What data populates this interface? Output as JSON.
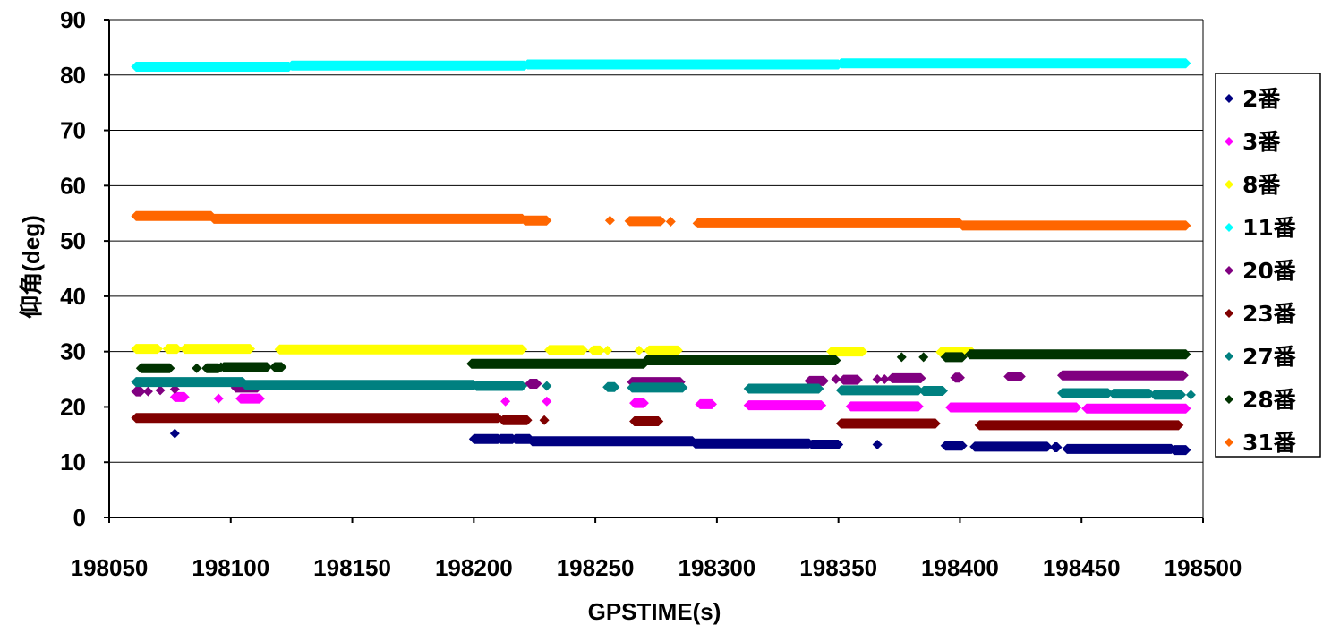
{
  "chart_data": {
    "type": "scatter",
    "title": "",
    "xlabel": "GPSTIME(s)",
    "ylabel": "仰角(deg)",
    "xlim": [
      198050,
      198500
    ],
    "ylim": [
      0,
      90
    ],
    "xticks": [
      198050,
      198100,
      198150,
      198200,
      198250,
      198300,
      198350,
      198400,
      198450,
      198500
    ],
    "yticks": [
      0,
      10,
      20,
      30,
      40,
      50,
      60,
      70,
      80,
      90
    ],
    "grid": "horizontal",
    "legend_position": "right",
    "series": [
      {
        "name": "2番",
        "color": "#000080",
        "points": [
          [
            198077,
            15.2
          ],
          [
            198366,
            13.2
          ]
        ],
        "segments": [
          [
            198200,
            198210,
            14.2
          ],
          [
            198211,
            198216,
            14.2
          ],
          [
            198217,
            198223,
            14.2
          ],
          [
            198224,
            198290,
            13.8
          ],
          [
            198291,
            198338,
            13.4
          ],
          [
            198339,
            198350,
            13.2
          ],
          [
            198394,
            198401,
            13.0
          ],
          [
            198406,
            198436,
            12.8
          ],
          [
            198439,
            198440,
            12.7
          ],
          [
            198444,
            198487,
            12.4
          ],
          [
            198488,
            198493,
            12.2
          ]
        ]
      },
      {
        "name": "3番",
        "color": "#FF00FF",
        "points": [
          [
            198095,
            21.5
          ],
          [
            198213,
            21.0
          ],
          [
            198230,
            21.0
          ]
        ],
        "segments": [
          [
            198077,
            198081,
            21.8
          ],
          [
            198104,
            198112,
            21.5
          ],
          [
            198266,
            198270,
            20.7
          ],
          [
            198293,
            198298,
            20.5
          ],
          [
            198313,
            198343,
            20.3
          ],
          [
            198355,
            198383,
            20.1
          ],
          [
            198396,
            198448,
            19.9
          ],
          [
            198452,
            198493,
            19.7
          ]
        ]
      },
      {
        "name": "8番",
        "color": "#FFFF00",
        "points": [
          [
            198255,
            30.2
          ],
          [
            198268,
            30.2
          ]
        ],
        "segments": [
          [
            198061,
            198070,
            30.5
          ],
          [
            198074,
            198078,
            30.5
          ],
          [
            198081,
            198108,
            30.5
          ],
          [
            198120,
            198220,
            30.4
          ],
          [
            198231,
            198245,
            30.3
          ],
          [
            198249,
            198252,
            30.2
          ],
          [
            198272,
            198284,
            30.2
          ],
          [
            198347,
            198360,
            30.0
          ],
          [
            198392,
            198405,
            29.9
          ]
        ]
      },
      {
        "name": "11番",
        "color": "#00FFFF",
        "points": [],
        "segments": [
          [
            198061,
            198124,
            81.5
          ],
          [
            198125,
            198221,
            81.7
          ],
          [
            198222,
            198350,
            81.9
          ],
          [
            198351,
            198493,
            82.1
          ]
        ]
      },
      {
        "name": "20番",
        "color": "#800080",
        "points": [
          [
            198066,
            22.8
          ],
          [
            198071,
            23.0
          ],
          [
            198077,
            23.2
          ],
          [
            198349,
            25.0
          ],
          [
            198366,
            25.0
          ],
          [
            198369,
            25.0
          ]
        ],
        "segments": [
          [
            198061,
            198063,
            22.8
          ],
          [
            198102,
            198111,
            23.5
          ],
          [
            198223,
            198226,
            24.2
          ],
          [
            198265,
            198285,
            24.5
          ],
          [
            198338,
            198344,
            24.7
          ],
          [
            198352,
            198358,
            24.9
          ],
          [
            198372,
            198384,
            25.2
          ],
          [
            198398,
            198400,
            25.3
          ],
          [
            198420,
            198425,
            25.5
          ],
          [
            198442,
            198492,
            25.7
          ]
        ]
      },
      {
        "name": "23番",
        "color": "#800000",
        "points": [
          [
            198229,
            17.6
          ]
        ],
        "segments": [
          [
            198061,
            198210,
            18.0
          ],
          [
            198212,
            198222,
            17.6
          ],
          [
            198266,
            198276,
            17.4
          ],
          [
            198351,
            198390,
            17.0
          ],
          [
            198408,
            198490,
            16.7
          ]
        ]
      },
      {
        "name": "27番",
        "color": "#008080",
        "points": [
          [
            198230,
            23.8
          ],
          [
            198495,
            22.2
          ]
        ],
        "segments": [
          [
            198061,
            198105,
            24.5
          ],
          [
            198106,
            198200,
            24.0
          ],
          [
            198201,
            198220,
            23.8
          ],
          [
            198255,
            198258,
            23.6
          ],
          [
            198265,
            198286,
            23.5
          ],
          [
            198313,
            198342,
            23.3
          ],
          [
            198351,
            198383,
            23.0
          ],
          [
            198385,
            198393,
            22.9
          ],
          [
            198442,
            198461,
            22.5
          ],
          [
            198463,
            198478,
            22.4
          ],
          [
            198480,
            198491,
            22.2
          ]
        ]
      },
      {
        "name": "28番",
        "color": "#003300",
        "points": [
          [
            198086,
            27.0
          ],
          [
            198096,
            27.2
          ],
          [
            198376,
            29.0
          ],
          [
            198385,
            29.0
          ]
        ],
        "segments": [
          [
            198063,
            198075,
            27.0
          ],
          [
            198090,
            198095,
            27.0
          ],
          [
            198097,
            198115,
            27.2
          ],
          [
            198118,
            198121,
            27.2
          ],
          [
            198199,
            198270,
            27.8
          ],
          [
            198271,
            198349,
            28.4
          ],
          [
            198394,
            198401,
            29.0
          ],
          [
            198404,
            198493,
            29.5
          ]
        ]
      },
      {
        "name": "31番",
        "color": "#FF6600",
        "points": [
          [
            198256,
            53.7
          ],
          [
            198281,
            53.5
          ]
        ],
        "segments": [
          [
            198061,
            198092,
            54.5
          ],
          [
            198093,
            198220,
            54.0
          ],
          [
            198221,
            198230,
            53.7
          ],
          [
            198264,
            198277,
            53.6
          ],
          [
            198292,
            198400,
            53.2
          ],
          [
            198401,
            198493,
            52.8
          ]
        ]
      }
    ]
  }
}
